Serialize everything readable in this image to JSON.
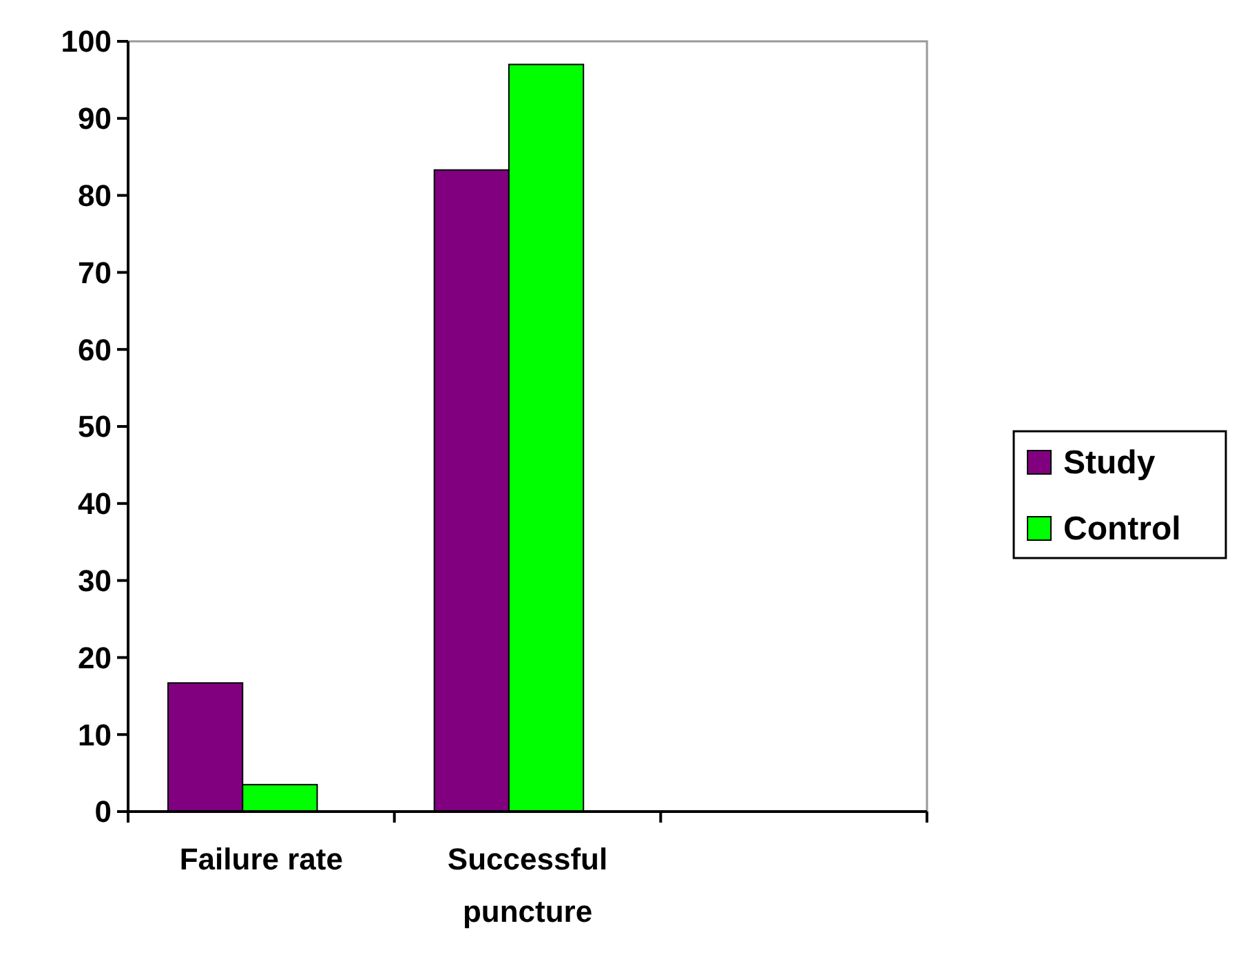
{
  "chart_data": {
    "type": "bar",
    "categories": [
      "Failure rate",
      "Successful puncture"
    ],
    "series": [
      {
        "name": "Study",
        "color": "#800080",
        "values": [
          16.7,
          83.3
        ]
      },
      {
        "name": "Control",
        "color": "#00ff00",
        "values": [
          3.5,
          97
        ]
      }
    ],
    "ylim": [
      0,
      100
    ],
    "yticks": [
      0,
      10,
      20,
      30,
      40,
      50,
      60,
      70,
      80,
      90,
      100
    ],
    "grid": false,
    "legend": "right"
  }
}
